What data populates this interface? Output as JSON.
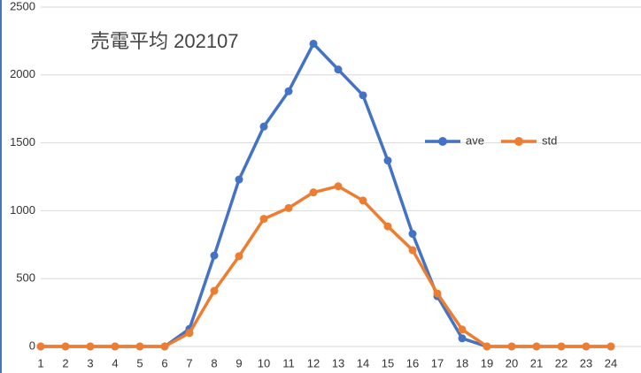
{
  "chart_data": {
    "type": "line",
    "title": "売電平均 202107",
    "categories": [
      1,
      2,
      3,
      4,
      5,
      6,
      7,
      8,
      9,
      10,
      11,
      12,
      13,
      14,
      15,
      16,
      17,
      18,
      19,
      20,
      21,
      22,
      23,
      24
    ],
    "series": [
      {
        "name": "ave",
        "color": "#4472c4",
        "values": [
          0,
          0,
          0,
          0,
          0,
          0,
          130,
          670,
          1230,
          1620,
          1880,
          2230,
          2040,
          1850,
          1370,
          830,
          370,
          60,
          0,
          0,
          0,
          0,
          0,
          0
        ]
      },
      {
        "name": "std",
        "color": "#ed7d31",
        "values": [
          0,
          0,
          0,
          0,
          0,
          0,
          100,
          410,
          665,
          940,
          1020,
          1135,
          1180,
          1075,
          885,
          710,
          390,
          125,
          0,
          0,
          0,
          0,
          0,
          0
        ]
      }
    ],
    "ylim": [
      0,
      2500
    ],
    "yticks": [
      0,
      500,
      1000,
      1500,
      2000,
      2500
    ],
    "grid": true
  }
}
